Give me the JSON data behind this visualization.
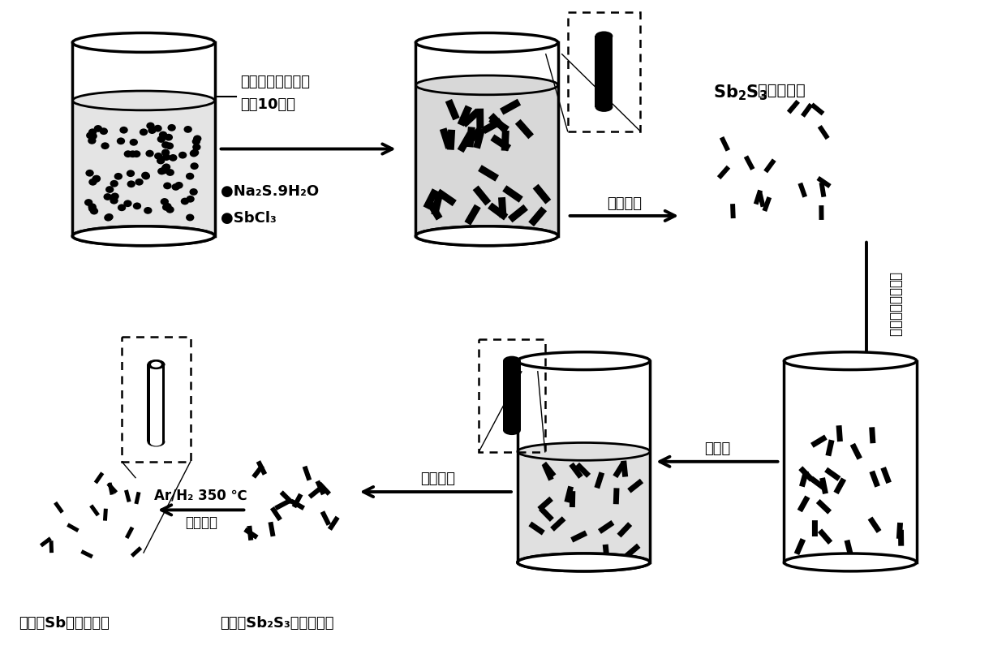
{
  "bg_color": "#ffffff",
  "figsize": [
    12.4,
    7.96
  ],
  "dpi": 100,
  "label_step1_line1": "一定温度下溶剂热",
  "label_step1_line2": "反应10小时",
  "label_centrifuge1": "离心分离",
  "label_centrifuge2": "离心分离",
  "label_sb2s3_title": "Sb",
  "label_sb2s3_suffix": "纳米棒粉末",
  "label_soak": "浸泡后",
  "label_arh2": "Ar/H₂ 350 ℃",
  "label_carbonize": "碳化还原",
  "label_product1": "碳包覆Sb纳米管粉末",
  "label_product2": "碳包覆Sb₂S₃纳米棒粉末",
  "label_na2s": "Na₂S.9H₂O",
  "label_sbcl3": "SbCl₃",
  "label_vertical": "有机碳源浸渍处理"
}
